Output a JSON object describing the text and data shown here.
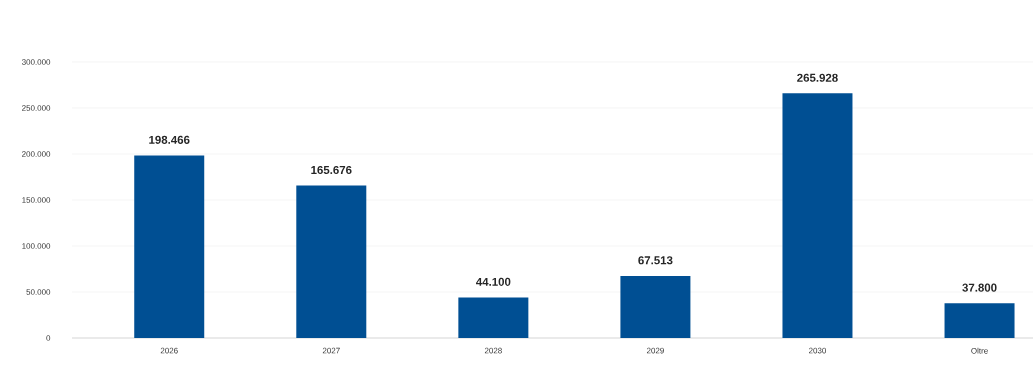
{
  "chart_data": {
    "type": "bar",
    "categories": [
      "2026",
      "2027",
      "2028",
      "2029",
      "2030",
      "Oltre"
    ],
    "values": [
      198466,
      165676,
      44100,
      67513,
      265928,
      37800
    ],
    "value_labels": [
      "198.466",
      "165.676",
      "44.100",
      "67.513",
      "265.928",
      "37.800"
    ],
    "color": "#004f93",
    "ylim": [
      0,
      300000
    ],
    "yticks": [
      0,
      {
        "value": 50000,
        "label": "50.000"
      },
      {
        "value": 100000,
        "label": "100.000"
      },
      {
        "value": 150000,
        "label": "150.000"
      },
      {
        "value": 200000,
        "label": "200.000"
      },
      {
        "value": 250000,
        "label": "250.000"
      },
      {
        "value": 300000,
        "label": "300.000"
      }
    ],
    "grid": "y"
  }
}
